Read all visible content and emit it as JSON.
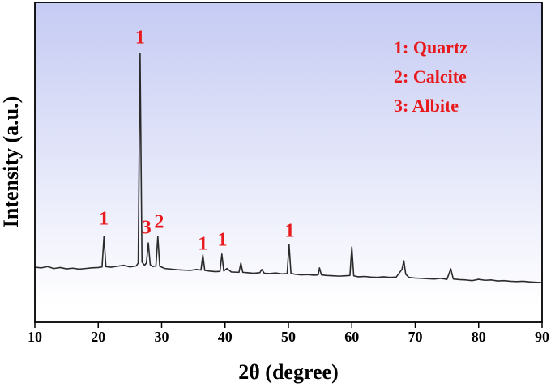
{
  "chart_data": {
    "type": "line",
    "x_label": "2θ  (degree)",
    "y_label": "Intensity (a.u.)",
    "xlim": [
      10,
      90
    ],
    "xticks": [
      10,
      20,
      30,
      40,
      50,
      60,
      70,
      80,
      90
    ],
    "ylim": [
      0,
      100
    ],
    "series": [
      {
        "color": "#2b2b2b",
        "x": [
          10,
          11,
          12,
          13,
          14,
          15,
          16,
          17,
          18,
          19,
          20,
          20.6,
          20.9,
          21.2,
          22,
          23,
          24,
          25,
          26,
          26.3,
          26.6,
          26.9,
          27.3,
          27.6,
          27.9,
          28.2,
          28.6,
          29.1,
          29.4,
          29.7,
          30.5,
          31.5,
          32.5,
          33.5,
          34.5,
          35.5,
          36.2,
          36.5,
          36.8,
          37.5,
          38.5,
          39.2,
          39.5,
          39.8,
          40.3,
          41,
          42.2,
          42.5,
          42.8,
          43.5,
          44.5,
          45.5,
          45.8,
          46.2,
          47,
          48,
          49,
          49.8,
          50.1,
          50.4,
          51,
          52,
          53,
          54,
          54.7,
          54.9,
          55.2,
          56,
          57,
          58,
          59,
          59.7,
          60,
          60.3,
          61,
          62,
          63,
          64,
          65,
          66,
          67,
          67.9,
          68.2,
          68.5,
          69,
          70,
          71,
          72,
          73,
          74,
          75,
          75.6,
          76,
          77,
          78,
          79,
          80,
          81,
          82,
          83,
          84,
          85,
          86,
          87,
          88,
          89,
          90
        ],
        "values": [
          17.2,
          17.0,
          17.4,
          16.8,
          17.1,
          16.7,
          16.9,
          16.6,
          16.8,
          17.0,
          17.1,
          17.3,
          26.8,
          17.4,
          17.2,
          17.5,
          17.8,
          17.3,
          17.6,
          18.5,
          84,
          18.8,
          17.8,
          18.5,
          24.8,
          18.0,
          17.4,
          17.6,
          26.8,
          17.5,
          16.8,
          16.6,
          16.4,
          16.3,
          16.2,
          16.5,
          16.3,
          21,
          16.2,
          16.0,
          15.8,
          15.9,
          21.3,
          16.0,
          16.8,
          15.7,
          15.6,
          18.5,
          15.6,
          15.5,
          15.3,
          15.5,
          16.5,
          15.3,
          15.2,
          15.4,
          15.1,
          15.2,
          24.3,
          15.3,
          15.0,
          14.8,
          14.9,
          14.7,
          14.8,
          17,
          14.8,
          14.6,
          14.5,
          14.4,
          14.5,
          14.6,
          23.5,
          14.5,
          14.2,
          14.3,
          14.1,
          14.0,
          14.2,
          14.0,
          14.1,
          16.5,
          19.2,
          15.0,
          14.0,
          13.8,
          13.7,
          13.6,
          13.5,
          13.7,
          13.4,
          16.7,
          13.5,
          13.3,
          13.2,
          13.0,
          13.4,
          13.1,
          13.2,
          12.9,
          13.0,
          12.8,
          12.7,
          12.8,
          12.6,
          12.5,
          12.4
        ]
      }
    ],
    "annotations": [
      "1",
      "1",
      "3",
      "2",
      "1",
      "1",
      "1"
    ],
    "legend": [
      "1: Quartz",
      "2: Calcite",
      "3: Albite"
    ]
  }
}
